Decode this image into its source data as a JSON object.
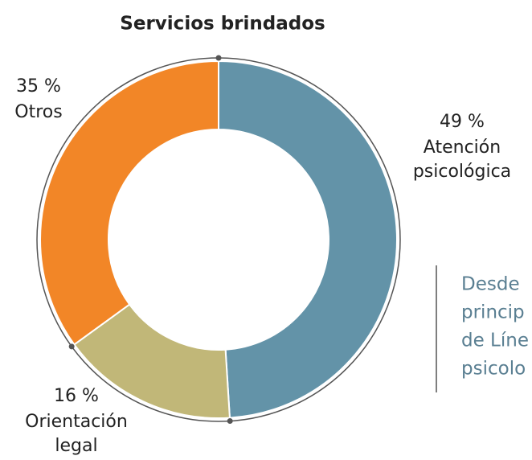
{
  "chart_data": {
    "type": "donut",
    "title": "Servicios brindados",
    "categories": [
      "Atención psicológica",
      "Orientación legal",
      "Otros"
    ],
    "values": [
      49,
      16,
      35
    ],
    "value_labels": [
      "49 %",
      "16 %",
      "35 %"
    ],
    "colors": [
      "#6393a8",
      "#c1b778",
      "#f28627"
    ],
    "annotation": [
      "Desde",
      "princip",
      "de Líne",
      "psicolo"
    ]
  }
}
